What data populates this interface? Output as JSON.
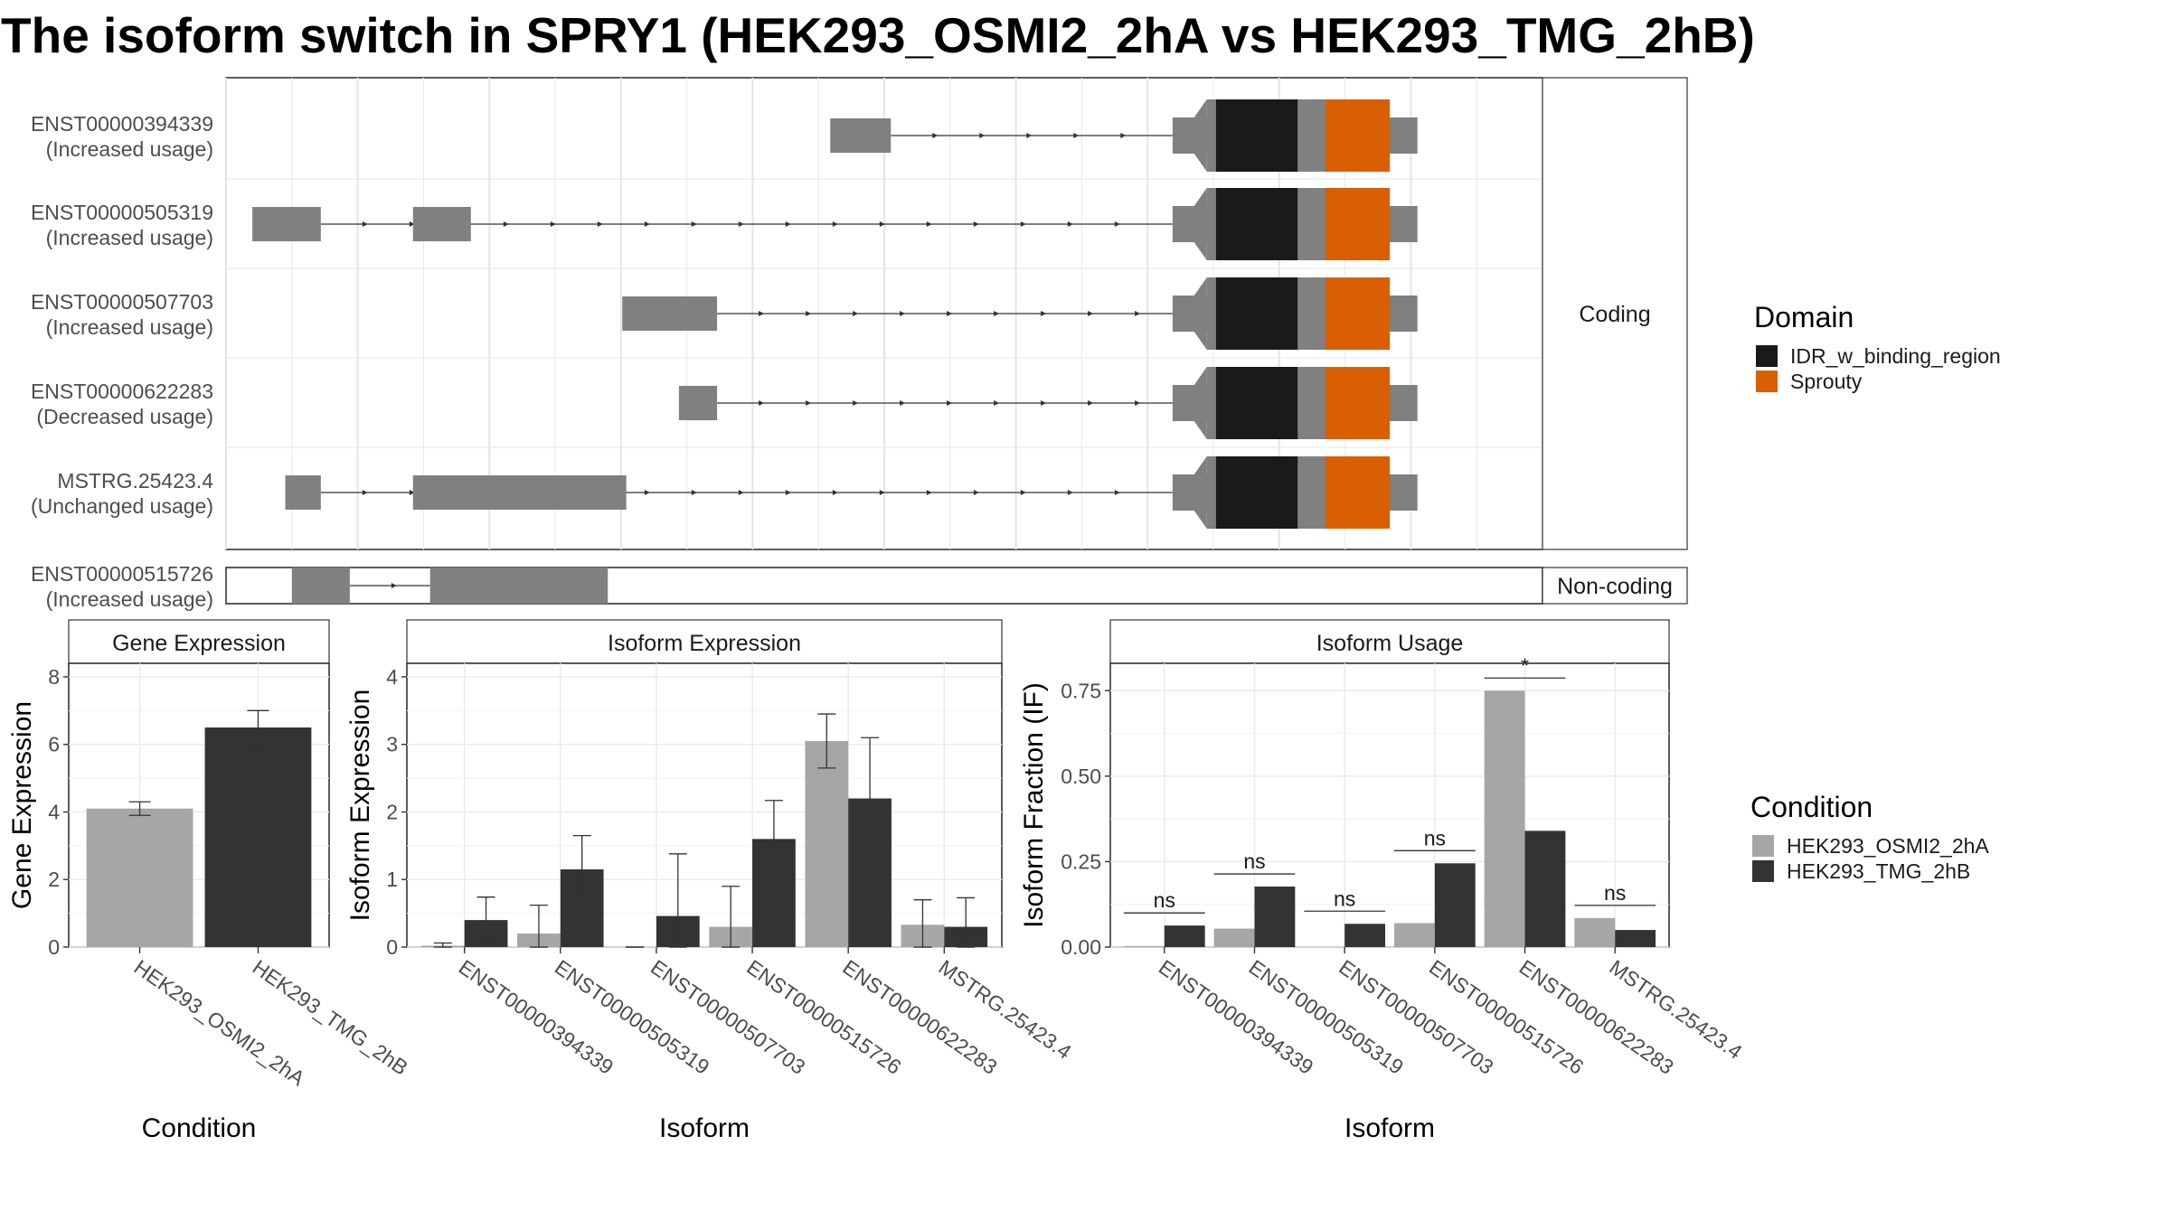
{
  "title": "The isoform switch in SPRY1 (HEK293_OSMI2_2hA vs HEK293_TMG_2hB)",
  "colors": {
    "exon": "#808080",
    "idr": "#1a1a1a",
    "sprouty": "#d95f02",
    "cond_a": "#a6a6a6",
    "cond_b": "#333333",
    "grid": "#ebebeb",
    "strip_fill": "#ffffff"
  },
  "structure": {
    "x_range": [
      0,
      100
    ],
    "facets": [
      "Coding",
      "Non-coding"
    ],
    "domain_legend": {
      "title": "Domain",
      "items": [
        {
          "label": "IDR_w_binding_region",
          "color_key": "idr"
        },
        {
          "label": "Sprouty",
          "color_key": "sprouty"
        }
      ]
    },
    "transcripts": [
      {
        "id": "ENST00000394339",
        "usage": "(Increased usage)",
        "facet": "Coding",
        "exons": [
          [
            45.9,
            50.5
          ],
          [
            71.9,
            90.5
          ]
        ],
        "intron": [
          50.5,
          71.9
        ]
      },
      {
        "id": "ENST00000505319",
        "usage": "(Increased usage)",
        "facet": "Coding",
        "exons": [
          [
            2.0,
            7.2
          ],
          [
            14.2,
            18.6
          ],
          [
            71.9,
            90.5
          ]
        ],
        "intron": [
          7.2,
          71.9
        ]
      },
      {
        "id": "ENST00000507703",
        "usage": "(Increased usage)",
        "facet": "Coding",
        "exons": [
          [
            30.1,
            37.3
          ],
          [
            71.9,
            90.5
          ]
        ],
        "intron": [
          37.3,
          71.9
        ]
      },
      {
        "id": "ENST00000622283",
        "usage": "(Decreased usage)",
        "facet": "Coding",
        "exons": [
          [
            34.4,
            37.3
          ],
          [
            71.9,
            90.5
          ]
        ],
        "intron": [
          37.3,
          71.9
        ]
      },
      {
        "id": "MSTRG.25423.4",
        "usage": "(Unchanged usage)",
        "facet": "Coding",
        "exons": [
          [
            4.5,
            7.2
          ],
          [
            14.2,
            30.4
          ],
          [
            71.9,
            90.5
          ]
        ],
        "intron": [
          7.2,
          71.9
        ]
      },
      {
        "id": "ENST00000515726",
        "usage": "(Increased usage)",
        "facet": "Non-coding",
        "exons": [
          [
            5.0,
            9.4
          ],
          [
            15.5,
            29.0
          ]
        ],
        "intron": [
          9.4,
          15.5
        ]
      }
    ],
    "cds": [
      74.5,
      87.5
    ],
    "domains": [
      {
        "name": "IDR_w_binding_region",
        "start": 75.2,
        "end": 81.4
      },
      {
        "name": "Sprouty",
        "start": 83.5,
        "end": 88.4
      }
    ]
  },
  "chart_data": [
    {
      "type": "bar",
      "strip": "Gene Expression",
      "categories": [
        "HEK293_OSMI2_2hA",
        "HEK293_TMG_2hB"
      ],
      "values": [
        4.1,
        6.5
      ],
      "errors": [
        [
          3.9,
          4.3
        ],
        [
          6.0,
          7.0
        ]
      ],
      "xlabel": "Condition",
      "ylabel": "Gene Expression",
      "ylim": [
        0,
        8.4
      ],
      "yticks": [
        0,
        2,
        4,
        6,
        8
      ],
      "ytick_labels": [
        "0",
        "2",
        "4",
        "6",
        "8"
      ]
    },
    {
      "type": "bar",
      "strip": "Isoform Expression",
      "categories": [
        "ENST00000394339",
        "ENST00000505319",
        "ENST00000507703",
        "ENST00000515726",
        "ENST00000622283",
        "MSTRG.25423.4"
      ],
      "series": [
        {
          "name": "HEK293_OSMI2_2hA",
          "values": [
            0.02,
            0.2,
            0.0,
            0.3,
            3.05,
            0.33
          ],
          "errors": [
            [
              0.0,
              0.06
            ],
            [
              0.0,
              0.62
            ],
            [
              0.0,
              0.0
            ],
            [
              0.0,
              0.9
            ],
            [
              2.65,
              3.45
            ],
            [
              0.0,
              0.7
            ]
          ]
        },
        {
          "name": "HEK293_TMG_2hB",
          "values": [
            0.4,
            1.15,
            0.46,
            1.6,
            2.2,
            0.3
          ],
          "errors": [
            [
              0.06,
              0.74
            ],
            [
              0.65,
              1.65
            ],
            [
              0.0,
              1.38
            ],
            [
              1.02,
              2.17
            ],
            [
              1.3,
              3.1
            ],
            [
              0.0,
              0.73
            ]
          ]
        }
      ],
      "xlabel": "Isoform",
      "ylabel": "Isoform Expression",
      "ylim": [
        0,
        4.2
      ],
      "yticks": [
        0,
        1,
        2,
        3,
        4
      ],
      "ytick_labels": [
        "0",
        "1",
        "2",
        "3",
        "4"
      ]
    },
    {
      "type": "bar",
      "strip": "Isoform Usage",
      "categories": [
        "ENST00000394339",
        "ENST00000505319",
        "ENST00000507703",
        "ENST00000515726",
        "ENST00000622283",
        "MSTRG.25423.4"
      ],
      "series": [
        {
          "name": "HEK293_OSMI2_2hA",
          "values": [
            0.003,
            0.054,
            0.0,
            0.07,
            0.75,
            0.085
          ]
        },
        {
          "name": "HEK293_TMG_2hB",
          "values": [
            0.063,
            0.177,
            0.068,
            0.245,
            0.34,
            0.05
          ]
        }
      ],
      "significance": [
        "ns",
        "ns",
        "ns",
        "ns",
        "*",
        "ns"
      ],
      "xlabel": "Isoform",
      "ylabel": "Isoform Fraction (IF)",
      "ylim": [
        0,
        0.83
      ],
      "yticks": [
        0,
        0.25,
        0.5,
        0.75
      ],
      "ytick_labels": [
        "0.00",
        "0.25",
        "0.50",
        "0.75"
      ]
    }
  ],
  "condition_legend": {
    "title": "Condition",
    "items": [
      {
        "label": "HEK293_OSMI2_2hA",
        "color_key": "cond_a"
      },
      {
        "label": "HEK293_TMG_2hB",
        "color_key": "cond_b"
      }
    ]
  }
}
